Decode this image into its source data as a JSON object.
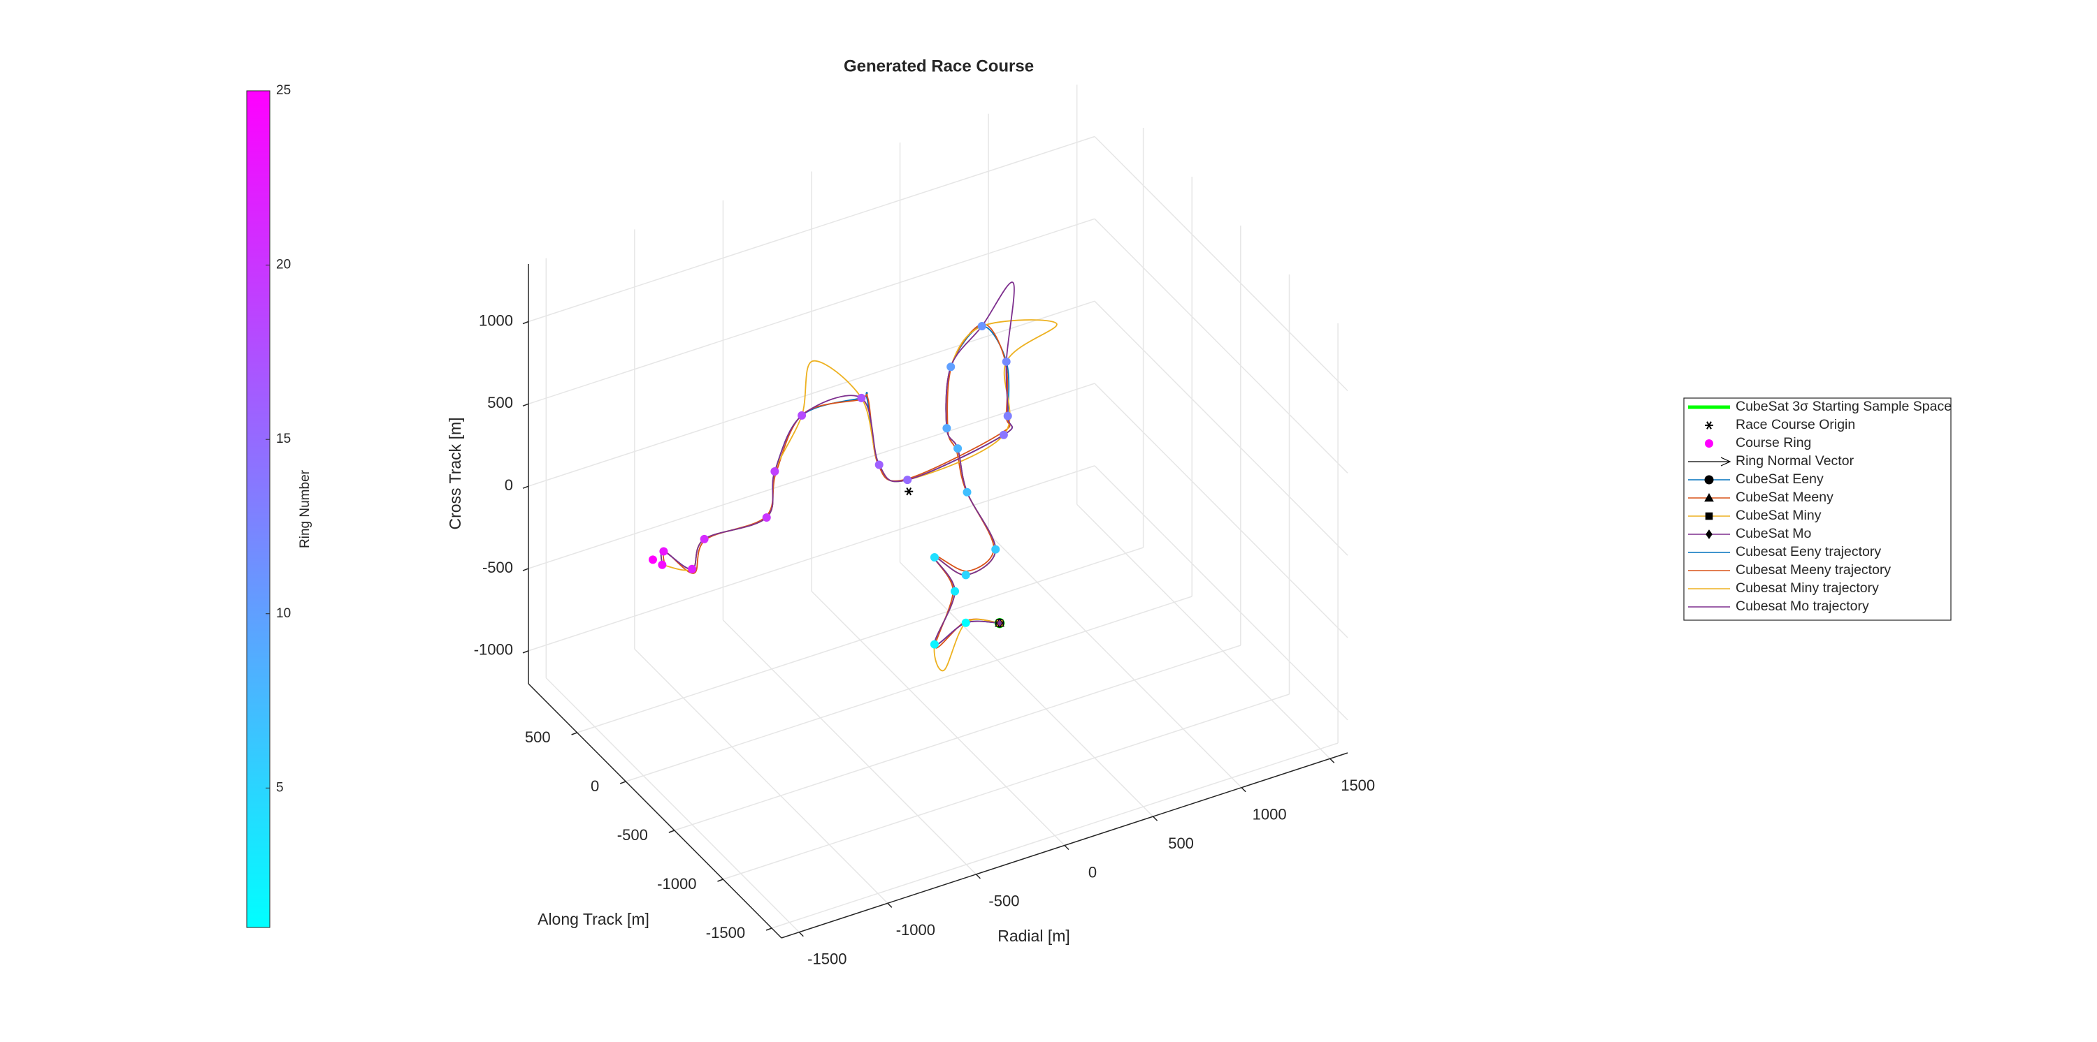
{
  "chart_data": {
    "type": "scatter3d",
    "title": "Generated Race Course",
    "xlabel": "Radial [m]",
    "ylabel": "Along Track [m]",
    "zlabel": "Cross Track [m]",
    "xlim": [
      -1600,
      1600
    ],
    "ylim": [
      -1600,
      1000
    ],
    "zlim": [
      -1200,
      1350
    ],
    "xticks": [
      -1500,
      -1000,
      -500,
      0,
      500,
      1000,
      1500
    ],
    "yticks": [
      -1500,
      -1000,
      -500,
      0,
      500
    ],
    "zticks": [
      -1000,
      -500,
      0,
      500,
      1000
    ],
    "grid": true,
    "colorbar": {
      "label": "Ring Number",
      "clim": [
        1,
        25
      ],
      "ticks": [
        5,
        10,
        15,
        20,
        25
      ],
      "colormap": [
        "#00ffff",
        "#ff00ff"
      ]
    },
    "legend": "right",
    "series": [
      {
        "name": "CubeSat 3σ Starting Sample Space",
        "color": "#00ff00",
        "marker": "thickline",
        "x": [
          513
        ],
        "y": [
          0
        ],
        "z": [
          -980
        ]
      },
      {
        "name": "Race Course Origin",
        "color": "#000000",
        "marker": "asterisk",
        "x": [
          0
        ],
        "y": [
          0
        ],
        "z": [
          0
        ]
      },
      {
        "name": "Course Ring",
        "color": "#ff00ff",
        "marker": "ring",
        "x": [
          322,
          145,
          260,
          145,
          322,
          490,
          329,
          276,
          214,
          237,
          413,
          551,
          559,
          536,
          -8,
          -168,
          -268,
          -605,
          -758,
          -804,
          -1156,
          -1225,
          -1386,
          -1394,
          -1447
        ],
        "y": [
          0,
          0,
          0,
          0,
          0,
          0,
          0,
          0,
          0,
          0,
          0,
          0,
          0,
          0,
          0,
          0,
          0,
          0,
          0,
          0,
          0,
          0,
          0,
          0,
          0
        ],
        "z": [
          -911,
          -980,
          -698,
          -451,
          -621,
          -524,
          -120,
          164,
          309,
          674,
          859,
          595,
          262,
          155,
          73,
          221,
          662,
          674,
          388,
          124,
          117,
          -41,
          123,
          44,
          94
        ]
      },
      {
        "name": "Ring Normal Vector",
        "color": "#000000",
        "marker": "arrow"
      },
      {
        "name": "CubeSat Eeny",
        "color": "#0072bd",
        "marker": "circle",
        "x": [
          513
        ],
        "y": [
          0
        ],
        "z": [
          -980
        ]
      },
      {
        "name": "CubeSat Meeny",
        "color": "#d95319",
        "marker": "triangle",
        "x": [
          513
        ],
        "y": [
          0
        ],
        "z": [
          -980
        ]
      },
      {
        "name": "CubeSat Miny",
        "color": "#edb120",
        "marker": "square",
        "x": [
          513
        ],
        "y": [
          0
        ],
        "z": [
          -980
        ]
      },
      {
        "name": "CubeSat Mo",
        "color": "#7e2f8e",
        "marker": "diamond",
        "x": [
          513
        ],
        "y": [
          0
        ],
        "z": [
          -980
        ]
      },
      {
        "name": "Cubesat Eeny trajectory",
        "color": "#0072bd",
        "marker": "trajectory",
        "x": [
          513,
          322,
          145,
          260,
          145,
          322,
          490,
          329,
          276,
          214,
          237,
          413,
          551,
          559,
          536,
          -8,
          -168,
          -237,
          -268,
          -605,
          -758,
          -804,
          -1156,
          -1225,
          -1386,
          -1394
        ],
        "y": [
          0,
          0,
          0,
          0,
          0,
          0,
          0,
          0,
          0,
          0,
          0,
          0,
          0,
          0,
          0,
          0,
          0,
          0,
          0,
          0,
          0,
          0,
          0,
          0,
          0,
          0
        ],
        "z": [
          -980,
          -911,
          -980,
          -698,
          -451,
          -621,
          -524,
          -120,
          164,
          309,
          674,
          859,
          595,
          262,
          155,
          73,
          221,
          650,
          662,
          674,
          388,
          124,
          117,
          -41,
          123,
          44
        ]
      },
      {
        "name": "Cubesat Meeny trajectory",
        "color": "#d95319",
        "marker": "trajectory",
        "x": [
          513,
          330,
          150,
          250,
          140,
          330,
          480,
          320,
          270,
          220,
          245,
          420,
          545,
          550,
          520,
          -20,
          -175,
          -230,
          -280,
          -600,
          -750,
          -810,
          -1150,
          -1215,
          -1375,
          -1380
        ],
        "y": [
          0,
          0,
          0,
          0,
          0,
          0,
          0,
          0,
          0,
          0,
          0,
          0,
          0,
          0,
          0,
          0,
          0,
          0,
          0,
          0,
          0,
          0,
          0,
          0,
          0,
          0
        ],
        "z": [
          -980,
          -900,
          -1000,
          -690,
          -440,
          -600,
          -510,
          -100,
          150,
          300,
          690,
          870,
          600,
          270,
          170,
          80,
          230,
          640,
          655,
          680,
          380,
          130,
          110,
          -70,
          115,
          35
        ]
      },
      {
        "name": "Cubesat Miny trajectory",
        "color": "#edb120",
        "marker": "trajectory",
        "x": [
          513,
          322,
          199,
          145,
          260,
          145,
          322,
          490,
          329,
          276,
          214,
          237,
          413,
          835,
          551,
          536,
          -8,
          -168,
          -268,
          -544,
          -605,
          -758,
          -804,
          -1156,
          -1225,
          -1394
        ],
        "y": [
          0,
          0,
          0,
          0,
          0,
          0,
          0,
          0,
          0,
          0,
          0,
          0,
          0,
          0,
          0,
          0,
          0,
          0,
          0,
          0,
          0,
          0,
          0,
          0,
          0,
          0
        ],
        "z": [
          -980,
          -911,
          -1156,
          -980,
          -698,
          -451,
          -621,
          -524,
          -120,
          164,
          309,
          674,
          859,
          726,
          595,
          155,
          73,
          221,
          662,
          983,
          674,
          388,
          124,
          117,
          -41,
          44
        ]
      },
      {
        "name": "Cubesat Mo trajectory",
        "color": "#7e2f8e",
        "marker": "trajectory",
        "x": [
          513,
          322,
          145,
          260,
          145,
          322,
          490,
          329,
          276,
          214,
          237,
          413,
          590,
          551,
          559,
          536,
          -8,
          -168,
          -268,
          -605,
          -758,
          -804,
          -1156,
          -1225,
          -1386,
          -1394
        ],
        "y": [
          0,
          0,
          0,
          0,
          0,
          0,
          0,
          0,
          0,
          0,
          0,
          0,
          0,
          0,
          0,
          0,
          0,
          0,
          0,
          0,
          0,
          0,
          0,
          0,
          0,
          0
        ],
        "z": [
          -980,
          -911,
          -980,
          -698,
          -451,
          -621,
          -524,
          -120,
          164,
          309,
          674,
          859,
          1060,
          595,
          262,
          155,
          73,
          221,
          662,
          674,
          388,
          124,
          117,
          -41,
          123,
          44
        ]
      }
    ]
  }
}
